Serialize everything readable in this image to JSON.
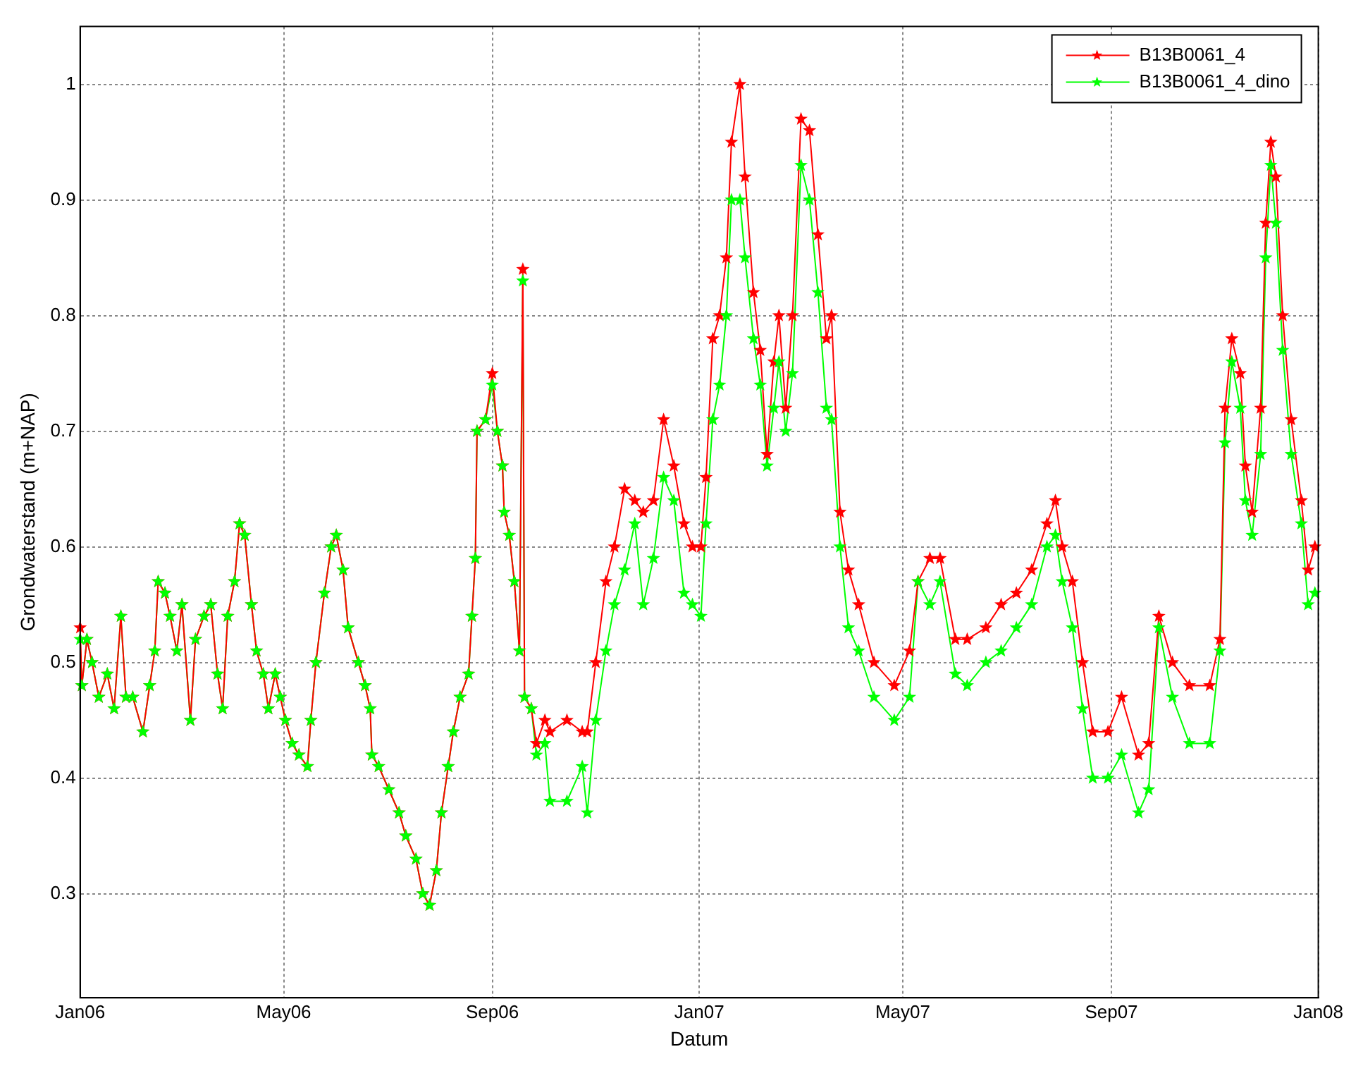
{
  "chart_data": {
    "type": "line",
    "xlabel": "Datum",
    "ylabel": "Grondwaterstand (m+NAP)",
    "x": [
      "2006-01-01",
      "2006-01-02",
      "2006-01-05",
      "2006-01-08",
      "2006-01-12",
      "2006-01-17",
      "2006-01-21",
      "2006-01-25",
      "2006-01-28",
      "2006-02-01",
      "2006-02-07",
      "2006-02-11",
      "2006-02-14",
      "2006-02-16",
      "2006-02-20",
      "2006-02-23",
      "2006-02-27",
      "2006-03-02",
      "2006-03-07",
      "2006-03-10",
      "2006-03-15",
      "2006-03-19",
      "2006-03-23",
      "2006-03-26",
      "2006-03-29",
      "2006-04-02",
      "2006-04-05",
      "2006-04-08",
      "2006-04-12",
      "2006-04-15",
      "2006-04-19",
      "2006-04-22",
      "2006-04-26",
      "2006-04-29",
      "2006-05-02",
      "2006-05-06",
      "2006-05-10",
      "2006-05-15",
      "2006-05-17",
      "2006-05-20",
      "2006-05-25",
      "2006-05-29",
      "2006-06-01",
      "2006-06-05",
      "2006-06-08",
      "2006-06-14",
      "2006-06-18",
      "2006-06-21",
      "2006-06-22",
      "2006-06-26",
      "2006-07-02",
      "2006-07-08",
      "2006-07-12",
      "2006-07-18",
      "2006-07-22",
      "2006-07-26",
      "2006-07-30",
      "2006-08-02",
      "2006-08-06",
      "2006-08-09",
      "2006-08-13",
      "2006-08-18",
      "2006-08-20",
      "2006-08-22",
      "2006-08-23",
      "2006-08-28",
      "2006-09-01",
      "2006-09-04",
      "2006-09-07",
      "2006-09-08",
      "2006-09-11",
      "2006-09-14",
      "2006-09-17",
      "2006-09-19",
      "2006-09-20",
      "2006-09-24",
      "2006-09-27",
      "2006-10-02",
      "2006-10-05",
      "2006-10-15",
      "2006-10-24",
      "2006-10-27",
      "2006-11-01",
      "2006-11-07",
      "2006-11-12",
      "2006-11-18",
      "2006-11-24",
      "2006-11-29",
      "2006-12-05",
      "2006-12-11",
      "2006-12-17",
      "2006-12-23",
      "2006-12-28",
      "2007-01-02",
      "2007-01-05",
      "2007-01-09",
      "2007-01-13",
      "2007-01-17",
      "2007-01-20",
      "2007-01-25",
      "2007-01-28",
      "2007-02-02",
      "2007-02-06",
      "2007-02-10",
      "2007-02-14",
      "2007-02-17",
      "2007-02-21",
      "2007-02-25",
      "2007-03-02",
      "2007-03-07",
      "2007-03-12",
      "2007-03-17",
      "2007-03-20",
      "2007-03-25",
      "2007-03-30",
      "2007-04-05",
      "2007-04-14",
      "2007-04-26",
      "2007-05-05",
      "2007-05-10",
      "2007-05-17",
      "2007-05-23",
      "2007-06-01",
      "2007-06-08",
      "2007-06-19",
      "2007-06-28",
      "2007-07-07",
      "2007-07-16",
      "2007-07-25",
      "2007-07-30",
      "2007-08-03",
      "2007-08-09",
      "2007-08-15",
      "2007-08-21",
      "2007-08-30",
      "2007-09-07",
      "2007-09-17",
      "2007-09-23",
      "2007-09-29",
      "2007-10-07",
      "2007-10-17",
      "2007-10-29",
      "2007-11-04",
      "2007-11-07",
      "2007-11-11",
      "2007-11-16",
      "2007-11-19",
      "2007-11-23",
      "2007-11-28",
      "2007-12-01",
      "2007-12-04",
      "2007-12-07",
      "2007-12-11",
      "2007-12-16",
      "2007-12-22",
      "2007-12-26",
      "2007-12-30"
    ],
    "series": [
      {
        "name": "B13B0061_4",
        "color": "#ff0000",
        "values": [
          0.53,
          0.48,
          0.52,
          0.5,
          0.47,
          0.49,
          0.46,
          0.54,
          0.47,
          0.47,
          0.44,
          0.48,
          0.51,
          0.57,
          0.56,
          0.54,
          0.51,
          0.55,
          0.45,
          0.52,
          0.54,
          0.55,
          0.49,
          0.46,
          0.54,
          0.57,
          0.62,
          0.61,
          0.55,
          0.51,
          0.49,
          0.46,
          0.49,
          0.47,
          0.45,
          0.43,
          0.42,
          0.41,
          0.45,
          0.5,
          0.56,
          0.6,
          0.61,
          0.58,
          0.53,
          0.5,
          0.48,
          0.46,
          0.42,
          0.41,
          0.39,
          0.37,
          0.35,
          0.33,
          0.3,
          0.29,
          0.32,
          0.37,
          0.41,
          0.44,
          0.47,
          0.49,
          0.54,
          0.59,
          0.7,
          0.71,
          0.75,
          0.7,
          0.67,
          0.63,
          0.61,
          0.57,
          0.51,
          0.84,
          0.47,
          0.46,
          0.43,
          0.45,
          0.44,
          0.45,
          0.44,
          0.44,
          0.5,
          0.57,
          0.6,
          0.65,
          0.64,
          0.63,
          0.64,
          0.71,
          0.67,
          0.62,
          0.6,
          0.6,
          0.66,
          0.78,
          0.8,
          0.85,
          0.95,
          1.0,
          0.92,
          0.82,
          0.77,
          0.68,
          0.76,
          0.8,
          0.72,
          0.8,
          0.97,
          0.96,
          0.87,
          0.78,
          0.8,
          0.63,
          0.58,
          0.55,
          0.5,
          0.48,
          0.51,
          0.57,
          0.59,
          0.59,
          0.52,
          0.52,
          0.53,
          0.55,
          0.56,
          0.58,
          0.62,
          0.64,
          0.6,
          0.57,
          0.5,
          0.44,
          0.44,
          0.47,
          0.42,
          0.43,
          0.54,
          0.5,
          0.48,
          0.48,
          0.52,
          0.72,
          0.78,
          0.75,
          0.67,
          0.63,
          0.72,
          0.88,
          0.95,
          0.92,
          0.8,
          0.71,
          0.64,
          0.58,
          0.6
        ]
      },
      {
        "name": "B13B0061_4_dino",
        "color": "#00ff00",
        "values": [
          0.52,
          0.48,
          0.52,
          0.5,
          0.47,
          0.49,
          0.46,
          0.54,
          0.47,
          0.47,
          0.44,
          0.48,
          0.51,
          0.57,
          0.56,
          0.54,
          0.51,
          0.55,
          0.45,
          0.52,
          0.54,
          0.55,
          0.49,
          0.46,
          0.54,
          0.57,
          0.62,
          0.61,
          0.55,
          0.51,
          0.49,
          0.46,
          0.49,
          0.47,
          0.45,
          0.43,
          0.42,
          0.41,
          0.45,
          0.5,
          0.56,
          0.6,
          0.61,
          0.58,
          0.53,
          0.5,
          0.48,
          0.46,
          0.42,
          0.41,
          0.39,
          0.37,
          0.35,
          0.33,
          0.3,
          0.29,
          0.32,
          0.37,
          0.41,
          0.44,
          0.47,
          0.49,
          0.54,
          0.59,
          0.7,
          0.71,
          0.74,
          0.7,
          0.67,
          0.63,
          0.61,
          0.57,
          0.51,
          0.83,
          0.47,
          0.46,
          0.42,
          0.43,
          0.38,
          0.38,
          0.41,
          0.37,
          0.45,
          0.51,
          0.55,
          0.58,
          0.62,
          0.55,
          0.59,
          0.66,
          0.64,
          0.56,
          0.55,
          0.54,
          0.62,
          0.71,
          0.74,
          0.8,
          0.9,
          0.9,
          0.85,
          0.78,
          0.74,
          0.67,
          0.72,
          0.76,
          0.7,
          0.75,
          0.93,
          0.9,
          0.82,
          0.72,
          0.71,
          0.6,
          0.53,
          0.51,
          0.47,
          0.45,
          0.47,
          0.57,
          0.55,
          0.57,
          0.49,
          0.48,
          0.5,
          0.51,
          0.53,
          0.55,
          0.6,
          0.61,
          0.57,
          0.53,
          0.46,
          0.4,
          0.4,
          0.42,
          0.37,
          0.39,
          0.53,
          0.47,
          0.43,
          0.43,
          0.51,
          0.69,
          0.76,
          0.72,
          0.64,
          0.61,
          0.68,
          0.85,
          0.93,
          0.88,
          0.77,
          0.68,
          0.62,
          0.55,
          0.56
        ]
      }
    ],
    "xlim": [
      "2006-01-01",
      "2008-01-01"
    ],
    "xticks": [
      {
        "value": "2006-01-01",
        "label": "Jan06"
      },
      {
        "value": "2006-05-01",
        "label": "May06"
      },
      {
        "value": "2006-09-01",
        "label": "Sep06"
      },
      {
        "value": "2007-01-01",
        "label": "Jan07"
      },
      {
        "value": "2007-05-01",
        "label": "May07"
      },
      {
        "value": "2007-09-01",
        "label": "Sep07"
      },
      {
        "value": "2008-01-01",
        "label": "Jan08"
      }
    ],
    "ylim": [
      0.21,
      1.05
    ],
    "yticks": [
      0.3,
      0.4,
      0.5,
      0.6,
      0.7,
      0.8,
      0.9,
      1
    ],
    "grid": true,
    "legend": "top right",
    "marker": "star",
    "line_style": "solid"
  }
}
